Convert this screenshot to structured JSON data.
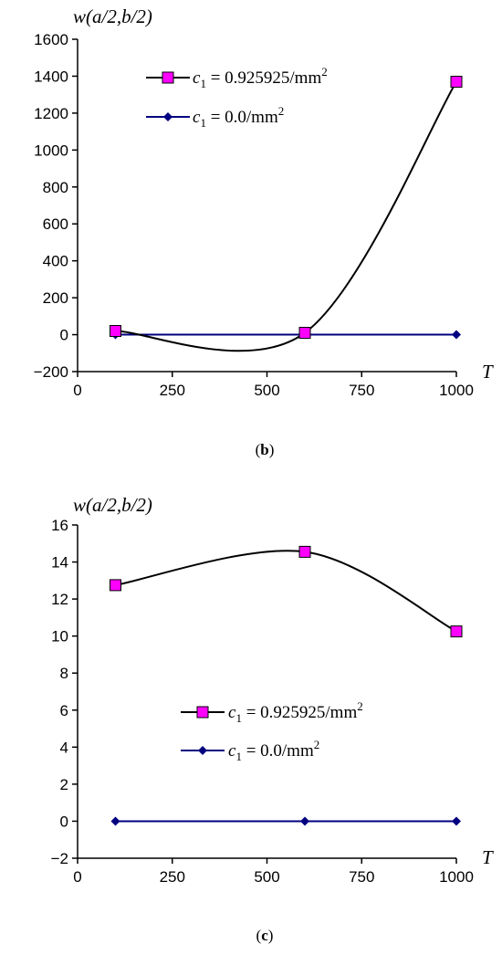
{
  "colors": {
    "series1_line": "#000000",
    "series1_marker": "#ff00ff",
    "series2_line": "#000080",
    "series2_marker": "#000080",
    "axis": "#000000"
  },
  "chart_data": [
    {
      "type": "line",
      "caption_open": "(",
      "caption_letter": "b",
      "caption_close": ")",
      "ylabel": "w(a/2,b/2)",
      "xlabel": "T",
      "xlim": [
        0,
        1000
      ],
      "ylim": [
        -200,
        1600
      ],
      "xticks": [
        "0",
        "250",
        "500",
        "750",
        "1000"
      ],
      "yticks": [
        "−200",
        "0",
        "200",
        "400",
        "600",
        "800",
        "1000",
        "1200",
        "1400",
        "1600"
      ],
      "legend_position": "top-center",
      "grid": false,
      "series": [
        {
          "name": "c1 = 0.925925/mm2",
          "legend_var": "c",
          "legend_sub": "1",
          "legend_rest": " = 0.925925/mm",
          "legend_sup": "2",
          "marker": "square",
          "smooth": true,
          "x": [
            100,
            600,
            1000
          ],
          "y": [
            20,
            10,
            1370
          ]
        },
        {
          "name": "c1 = 0.0/mm2",
          "legend_var": "c",
          "legend_sub": "1",
          "legend_rest": " = 0.0/mm",
          "legend_sup": "2",
          "marker": "diamond",
          "smooth": false,
          "x": [
            100,
            600,
            1000
          ],
          "y": [
            0,
            0,
            0
          ]
        }
      ]
    },
    {
      "type": "line",
      "caption_open": "(",
      "caption_letter": "c",
      "caption_close": ")",
      "ylabel": "w(a/2,b/2)",
      "xlabel": "T",
      "xlim": [
        0,
        1000
      ],
      "ylim": [
        -2,
        16
      ],
      "xticks": [
        "0",
        "250",
        "500",
        "750",
        "1000"
      ],
      "yticks": [
        "−2",
        "0",
        "2",
        "4",
        "6",
        "8",
        "10",
        "12",
        "14",
        "16"
      ],
      "legend_position": "center",
      "grid": false,
      "series": [
        {
          "name": "c1 = 0.925925/mm2",
          "legend_var": "c",
          "legend_sub": "1",
          "legend_rest": " = 0.925925/mm",
          "legend_sup": "2",
          "marker": "square",
          "smooth": true,
          "x": [
            100,
            600,
            1000
          ],
          "y": [
            12.75,
            14.55,
            10.25
          ]
        },
        {
          "name": "c1 = 0.0/mm2",
          "legend_var": "c",
          "legend_sub": "1",
          "legend_rest": " = 0.0/mm",
          "legend_sup": "2",
          "marker": "diamond",
          "smooth": false,
          "x": [
            100,
            600,
            1000
          ],
          "y": [
            0,
            0,
            0
          ]
        }
      ]
    }
  ]
}
